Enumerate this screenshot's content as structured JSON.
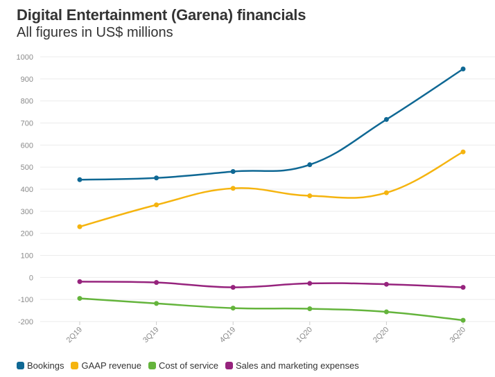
{
  "title": "Digital Entertainment (Garena) financials",
  "subtitle": "All figures in US$ millions",
  "chart_data": {
    "type": "line",
    "title": "Digital Entertainment (Garena) financials",
    "subtitle": "All figures in US$ millions",
    "xlabel": "",
    "ylabel": "",
    "categories": [
      "2Q19",
      "3Q19",
      "4Q19",
      "1Q20",
      "2Q20",
      "3Q20"
    ],
    "ylim": [
      -200,
      1000
    ],
    "yticks": [
      1000,
      900,
      800,
      700,
      600,
      500,
      400,
      300,
      200,
      100,
      0,
      -100,
      -200
    ],
    "grid": true,
    "legend_position": "bottom",
    "series": [
      {
        "name": "Bookings",
        "color": "#0f6894",
        "values": [
          443,
          451,
          480,
          511,
          716,
          945
        ]
      },
      {
        "name": "GAAP revenue",
        "color": "#f5b40f",
        "values": [
          230,
          329,
          404,
          370,
          384,
          569
        ]
      },
      {
        "name": "Cost of service",
        "color": "#64b43c",
        "values": [
          -95,
          -118,
          -139,
          -142,
          -156,
          -194
        ]
      },
      {
        "name": "Sales and marketing expenses",
        "color": "#96237d",
        "values": [
          -19,
          -23,
          -45,
          -27,
          -31,
          -45
        ]
      }
    ]
  }
}
